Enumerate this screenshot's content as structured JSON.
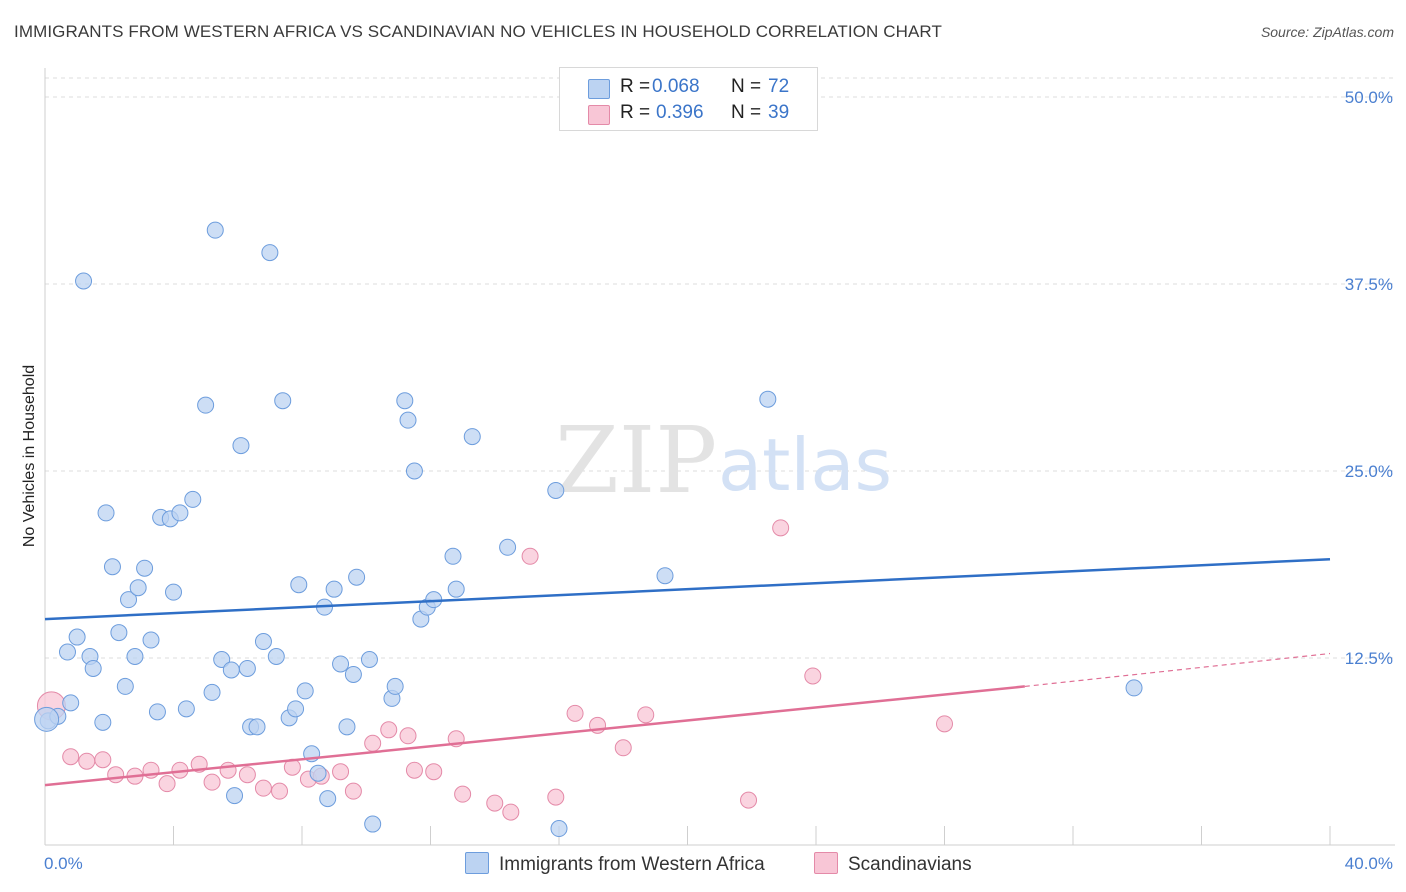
{
  "title": "IMMIGRANTS FROM WESTERN AFRICA VS SCANDINAVIAN NO VEHICLES IN HOUSEHOLD CORRELATION CHART",
  "source": "Source: ZipAtlas.com",
  "watermark": {
    "zip": "ZIP",
    "atlas": "atlas"
  },
  "legend": {
    "rows": [
      {
        "r_label": "R =",
        "r_value": "0.068",
        "n_label": "N =",
        "n_value": "72"
      },
      {
        "r_label": "R =",
        "r_value": "0.396",
        "n_label": "N =",
        "n_value": "39"
      }
    ]
  },
  "bottom_legend": {
    "series1": "Immigrants from Western Africa",
    "series2": "Scandinavians"
  },
  "colors": {
    "blue_fill": "#bcd3f2",
    "blue_stroke": "#6d9ddd",
    "blue_line": "#2f6fc6",
    "pink_fill": "#f8c6d6",
    "pink_stroke": "#e48aa8",
    "pink_line": "#e06f95",
    "tick_text": "#4a7fd0",
    "grid": "#dcdcdc"
  },
  "chart_data": {
    "type": "scatter",
    "title": "IMMIGRANTS FROM WESTERN AFRICA VS SCANDINAVIAN NO VEHICLES IN HOUSEHOLD CORRELATION CHART",
    "xlabel": "",
    "ylabel": "No Vehicles in Household",
    "xlim": [
      0,
      40
    ],
    "ylim": [
      0,
      50
    ],
    "x_tick_labels": [
      "0.0%",
      "40.0%"
    ],
    "y_ticks": [
      12.5,
      25.0,
      37.5,
      50.0
    ],
    "y_tick_labels": [
      "12.5%",
      "25.0%",
      "37.5%",
      "50.0%"
    ],
    "grid": true,
    "legend_position": "top-center",
    "series": [
      {
        "name": "Immigrants from Western Africa",
        "color": "#bcd3f2",
        "trend": {
          "x": [
            0,
            40
          ],
          "y": [
            15.1,
            19.1
          ]
        },
        "points": [
          [
            0.1,
            8.3
          ],
          [
            0.4,
            8.6
          ],
          [
            0.8,
            9.5
          ],
          [
            1.2,
            37.7
          ],
          [
            1.4,
            12.6
          ],
          [
            0.7,
            12.9
          ],
          [
            1.0,
            13.9
          ],
          [
            1.5,
            11.8
          ],
          [
            1.8,
            8.2
          ],
          [
            1.9,
            22.2
          ],
          [
            2.1,
            18.6
          ],
          [
            2.3,
            14.2
          ],
          [
            2.5,
            10.6
          ],
          [
            2.6,
            16.4
          ],
          [
            2.9,
            17.2
          ],
          [
            2.8,
            12.6
          ],
          [
            3.1,
            18.5
          ],
          [
            3.3,
            13.7
          ],
          [
            3.5,
            8.9
          ],
          [
            3.6,
            21.9
          ],
          [
            3.9,
            21.8
          ],
          [
            4.0,
            16.9
          ],
          [
            4.2,
            22.2
          ],
          [
            4.4,
            9.1
          ],
          [
            4.6,
            23.1
          ],
          [
            5.0,
            29.4
          ],
          [
            5.2,
            10.2
          ],
          [
            5.3,
            41.1
          ],
          [
            5.5,
            12.4
          ],
          [
            5.8,
            11.7
          ],
          [
            5.9,
            3.3
          ],
          [
            6.1,
            26.7
          ],
          [
            6.3,
            11.8
          ],
          [
            6.4,
            7.9
          ],
          [
            6.6,
            7.9
          ],
          [
            6.8,
            13.6
          ],
          [
            7.0,
            39.6
          ],
          [
            7.2,
            12.6
          ],
          [
            7.4,
            29.7
          ],
          [
            7.6,
            8.5
          ],
          [
            7.8,
            9.1
          ],
          [
            7.9,
            17.4
          ],
          [
            8.1,
            10.3
          ],
          [
            8.3,
            6.1
          ],
          [
            8.5,
            4.8
          ],
          [
            8.7,
            15.9
          ],
          [
            8.8,
            3.1
          ],
          [
            9.0,
            17.1
          ],
          [
            9.2,
            12.1
          ],
          [
            9.4,
            7.9
          ],
          [
            9.6,
            11.4
          ],
          [
            9.7,
            17.9
          ],
          [
            10.1,
            12.4
          ],
          [
            10.2,
            1.4
          ],
          [
            10.8,
            9.8
          ],
          [
            10.9,
            10.6
          ],
          [
            11.2,
            29.7
          ],
          [
            11.3,
            28.4
          ],
          [
            11.5,
            25.0
          ],
          [
            11.7,
            15.1
          ],
          [
            11.9,
            15.9
          ],
          [
            12.1,
            16.4
          ],
          [
            12.7,
            19.3
          ],
          [
            12.8,
            17.1
          ],
          [
            13.3,
            27.3
          ],
          [
            14.4,
            19.9
          ],
          [
            15.9,
            23.7
          ],
          [
            16.0,
            1.1
          ],
          [
            19.3,
            18.0
          ],
          [
            22.5,
            29.8
          ],
          [
            33.9,
            10.5
          ],
          [
            0.05,
            8.4
          ]
        ]
      },
      {
        "name": "Scandinavians",
        "color": "#f8c6d6",
        "trend": {
          "x": [
            0,
            30.5
          ],
          "y": [
            4.0,
            10.6
          ]
        },
        "trend_dashed": {
          "x": [
            30.5,
            40
          ],
          "y": [
            10.6,
            12.8
          ]
        },
        "points": [
          [
            0.2,
            9.3
          ],
          [
            0.8,
            5.9
          ],
          [
            1.3,
            5.6
          ],
          [
            1.8,
            5.7
          ],
          [
            2.2,
            4.7
          ],
          [
            2.8,
            4.6
          ],
          [
            3.3,
            5.0
          ],
          [
            3.8,
            4.1
          ],
          [
            4.2,
            5.0
          ],
          [
            4.8,
            5.4
          ],
          [
            5.2,
            4.2
          ],
          [
            5.7,
            5.0
          ],
          [
            6.3,
            4.7
          ],
          [
            6.8,
            3.8
          ],
          [
            7.3,
            3.6
          ],
          [
            7.7,
            5.2
          ],
          [
            8.2,
            4.4
          ],
          [
            8.6,
            4.6
          ],
          [
            9.2,
            4.9
          ],
          [
            9.6,
            3.6
          ],
          [
            10.2,
            6.8
          ],
          [
            10.7,
            7.7
          ],
          [
            11.3,
            7.3
          ],
          [
            11.5,
            5.0
          ],
          [
            12.1,
            4.9
          ],
          [
            12.8,
            7.1
          ],
          [
            13.0,
            3.4
          ],
          [
            14.0,
            2.8
          ],
          [
            14.5,
            2.2
          ],
          [
            15.1,
            19.3
          ],
          [
            15.9,
            3.2
          ],
          [
            16.5,
            8.8
          ],
          [
            17.2,
            8.0
          ],
          [
            18.0,
            6.5
          ],
          [
            18.7,
            8.7
          ],
          [
            21.9,
            3.0
          ],
          [
            22.9,
            21.2
          ],
          [
            23.9,
            11.3
          ],
          [
            28.0,
            8.1
          ]
        ]
      }
    ]
  }
}
